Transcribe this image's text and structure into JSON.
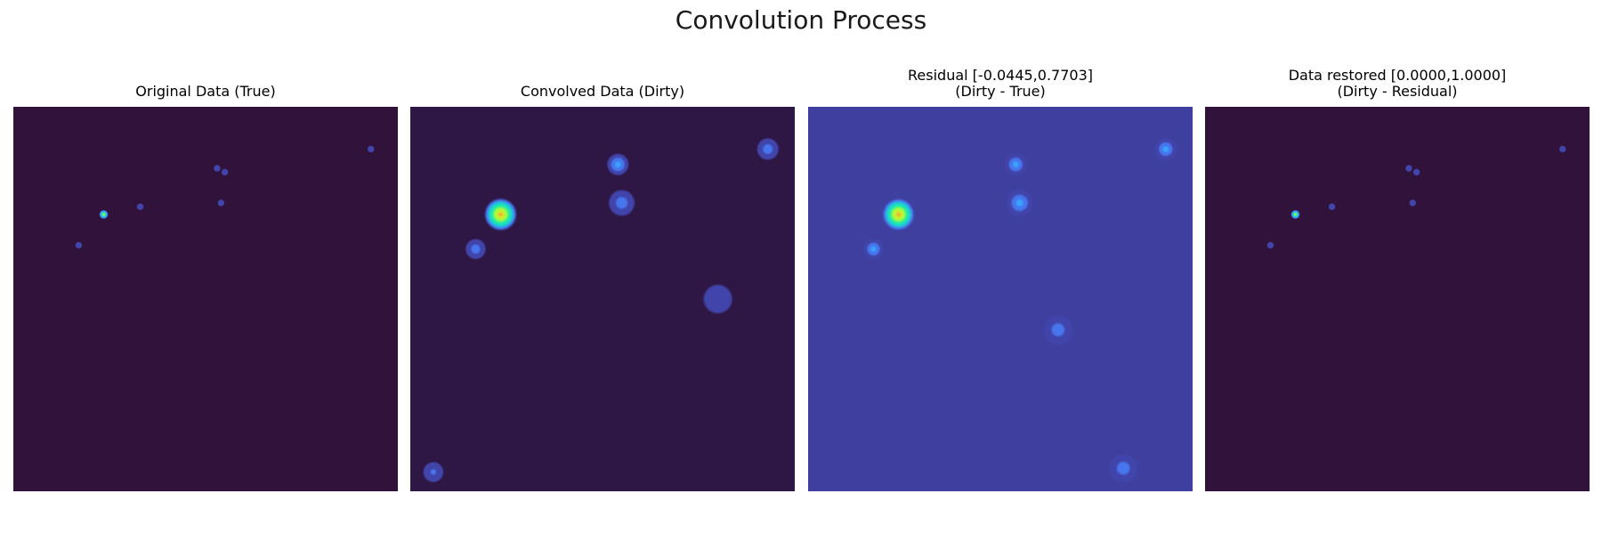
{
  "figure": {
    "suptitle": "Convolution Process"
  },
  "chart_data": [
    {
      "type": "heatmap",
      "title": "Original Data (True)",
      "title_line2": "",
      "colormap": "turbo",
      "background_color": "#30123b",
      "grid": false,
      "sources": [
        {
          "x": 0.235,
          "y": 0.28,
          "value": 0.75,
          "size": 0.006
        },
        {
          "x": 0.53,
          "y": 0.16,
          "value": 0.12,
          "size": 0.003
        },
        {
          "x": 0.55,
          "y": 0.17,
          "value": 0.1,
          "size": 0.003
        },
        {
          "x": 0.54,
          "y": 0.25,
          "value": 0.1,
          "size": 0.003
        },
        {
          "x": 0.17,
          "y": 0.36,
          "value": 0.1,
          "size": 0.003
        },
        {
          "x": 0.33,
          "y": 0.26,
          "value": 0.08,
          "size": 0.003
        },
        {
          "x": 0.93,
          "y": 0.11,
          "value": 0.08,
          "size": 0.003
        }
      ]
    },
    {
      "type": "heatmap",
      "title": "Convolved Data (Dirty)",
      "title_line2": "",
      "colormap": "turbo",
      "background_color": "#2f1745",
      "grid": false,
      "sources": [
        {
          "x": 0.235,
          "y": 0.28,
          "value": 0.95,
          "size": 0.022
        },
        {
          "x": 0.54,
          "y": 0.15,
          "value": 0.25,
          "size": 0.015
        },
        {
          "x": 0.55,
          "y": 0.25,
          "value": 0.2,
          "size": 0.018
        },
        {
          "x": 0.93,
          "y": 0.11,
          "value": 0.2,
          "size": 0.015
        },
        {
          "x": 0.17,
          "y": 0.37,
          "value": 0.18,
          "size": 0.014
        },
        {
          "x": 0.06,
          "y": 0.95,
          "value": 0.15,
          "size": 0.014
        },
        {
          "x": 0.8,
          "y": 0.5,
          "value": 0.1,
          "size": 0.02
        }
      ]
    },
    {
      "type": "heatmap",
      "title": "Residual [-0.0445,0.7703]",
      "title_line2": "(Dirty - True)",
      "colormap": "turbo",
      "background_color": "#3f3f9f",
      "grid": false,
      "sources": [
        {
          "x": 0.235,
          "y": 0.28,
          "value": 0.95,
          "size": 0.022
        },
        {
          "x": 0.54,
          "y": 0.15,
          "value": 0.3,
          "size": 0.015
        },
        {
          "x": 0.55,
          "y": 0.25,
          "value": 0.3,
          "size": 0.018
        },
        {
          "x": 0.93,
          "y": 0.11,
          "value": 0.3,
          "size": 0.015
        },
        {
          "x": 0.17,
          "y": 0.37,
          "value": 0.25,
          "size": 0.014
        },
        {
          "x": 0.65,
          "y": 0.58,
          "value": 0.2,
          "size": 0.02
        },
        {
          "x": 0.82,
          "y": 0.94,
          "value": 0.2,
          "size": 0.02
        }
      ]
    },
    {
      "type": "heatmap",
      "title": "Data restored [0.0000,1.0000]",
      "title_line2": "(Dirty - Residual)",
      "colormap": "turbo",
      "background_color": "#30123b",
      "grid": false,
      "sources": [
        {
          "x": 0.235,
          "y": 0.28,
          "value": 0.75,
          "size": 0.006
        },
        {
          "x": 0.53,
          "y": 0.16,
          "value": 0.12,
          "size": 0.003
        },
        {
          "x": 0.55,
          "y": 0.17,
          "value": 0.1,
          "size": 0.003
        },
        {
          "x": 0.54,
          "y": 0.25,
          "value": 0.1,
          "size": 0.003
        },
        {
          "x": 0.17,
          "y": 0.36,
          "value": 0.1,
          "size": 0.003
        },
        {
          "x": 0.33,
          "y": 0.26,
          "value": 0.08,
          "size": 0.003
        },
        {
          "x": 0.93,
          "y": 0.11,
          "value": 0.08,
          "size": 0.003
        }
      ]
    }
  ]
}
